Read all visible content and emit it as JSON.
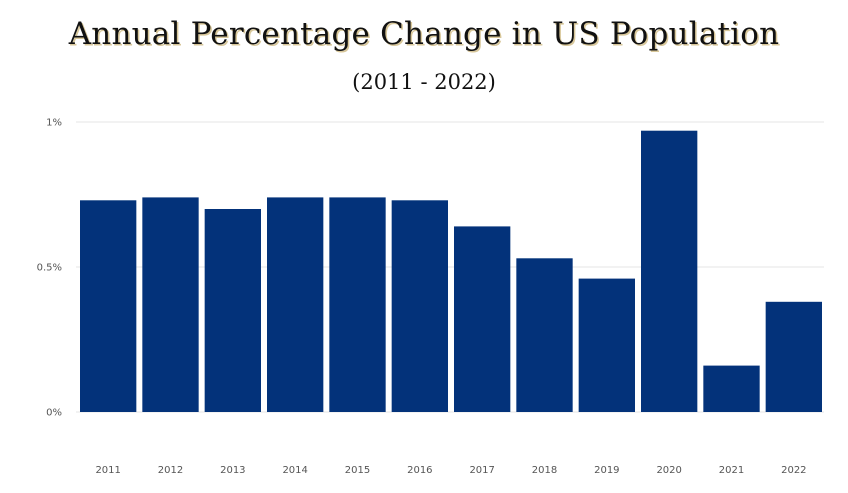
{
  "title": "Annual Percentage Change in US Population",
  "subtitle": "(2011 - 2022)",
  "chart_data": {
    "type": "bar",
    "title": "Annual Percentage Change in US Population",
    "subtitle": "(2011 - 2022)",
    "xlabel": "",
    "ylabel": "",
    "categories": [
      "2011",
      "2012",
      "2013",
      "2014",
      "2015",
      "2016",
      "2017",
      "2018",
      "2019",
      "2020",
      "2021",
      "2022"
    ],
    "values": [
      0.73,
      0.74,
      0.7,
      0.74,
      0.74,
      0.73,
      0.64,
      0.53,
      0.46,
      0.97,
      0.16,
      0.38
    ],
    "ylim": [
      0,
      1
    ],
    "yticks": [
      0,
      0.5,
      1
    ],
    "ytick_labels": [
      "0%",
      "0.5%",
      "1%"
    ],
    "grid": true,
    "legend": "none",
    "colors": {
      "bar": "#03327a",
      "grid": "#e6e6e6"
    }
  }
}
